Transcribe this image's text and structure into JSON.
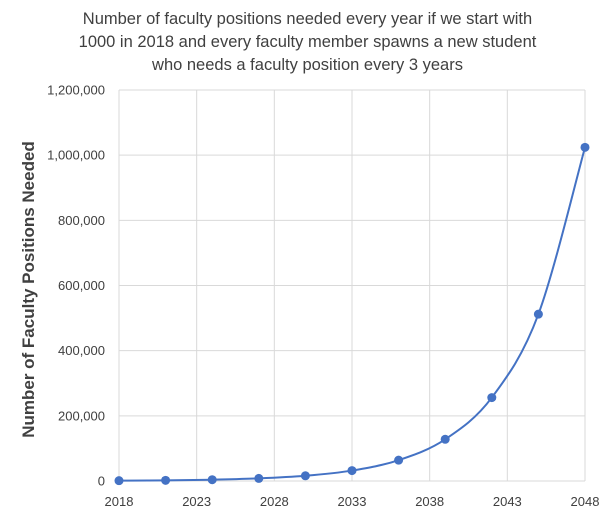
{
  "chart_data": {
    "type": "scatter",
    "title_lines": [
      "Number of faculty positions needed every year if we start with",
      "1000 in 2018 and every faculty member spawns a new student",
      "who needs a faculty position every 3 years"
    ],
    "xlabel": "",
    "ylabel": "Number of Faculty Positions Needed",
    "xlim": [
      2018,
      2048
    ],
    "ylim": [
      0,
      1200000
    ],
    "x_ticks": [
      2018,
      2023,
      2028,
      2033,
      2038,
      2043,
      2048
    ],
    "x_tick_labels": [
      "2018",
      "2023",
      "2028",
      "2033",
      "2038",
      "2043",
      "2048"
    ],
    "y_ticks": [
      0,
      200000,
      400000,
      600000,
      800000,
      1000000,
      1200000
    ],
    "y_tick_labels": [
      "0",
      "200,000",
      "400,000",
      "600,000",
      "800,000",
      "1,000,000",
      "1,200,000"
    ],
    "grid": true,
    "smooth_line": true,
    "series": [
      {
        "x": [
          2018,
          2021,
          2024,
          2027,
          2030,
          2033,
          2036,
          2039,
          2042,
          2045,
          2048
        ],
        "values": [
          1000,
          2000,
          4000,
          8000,
          16000,
          32000,
          64000,
          128000,
          256000,
          512000,
          1024000
        ],
        "color": "#4472C4"
      }
    ],
    "colors": {
      "grid": "#d9d9d9",
      "text": "#404040",
      "series": "#4472C4"
    }
  }
}
